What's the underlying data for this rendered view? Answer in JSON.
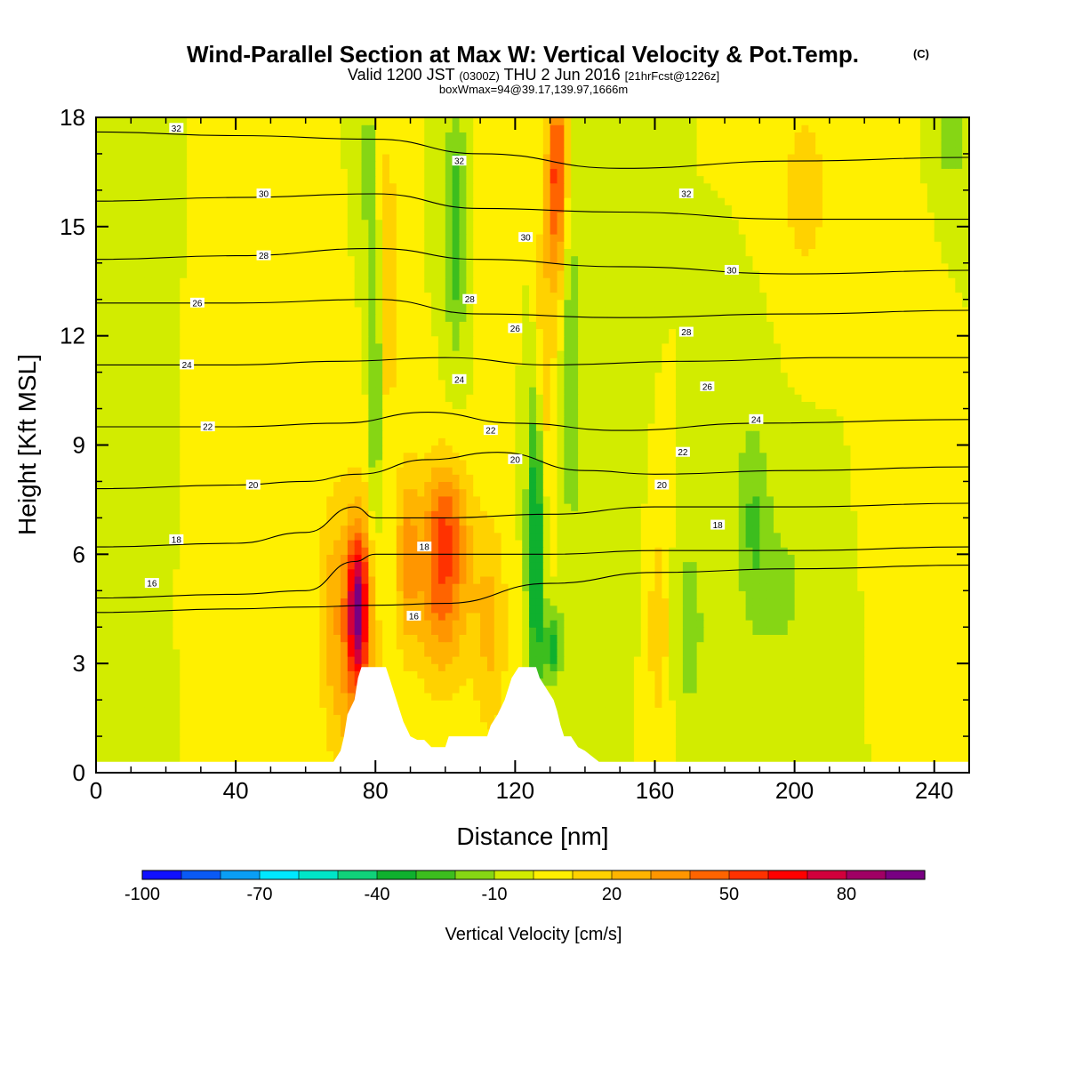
{
  "title": {
    "main": "Wind-Parallel Section at Max W: Vertical Velocity & Pot.Temp.",
    "copyright": "(C)",
    "valid_prefix": "Valid 1200 JST",
    "utc": "(0300Z)",
    "valid_date": "THU 2 Jun 2016",
    "forecast": "[21hrFcst@1226z]",
    "box_info": "boxWmax=94@39.17,139.97,1666m"
  },
  "chart_data": {
    "type": "heatmap",
    "xlabel": "Distance [nm]",
    "ylabel": "Height [Kft MSL]",
    "xlim": [
      0,
      250
    ],
    "ylim": [
      0,
      18
    ],
    "x_ticks": [
      0,
      40,
      80,
      120,
      160,
      200,
      240
    ],
    "x_tick_labels": [
      "0",
      "40",
      "80",
      "120",
      "160",
      "200",
      "240"
    ],
    "y_ticks": [
      0,
      3,
      6,
      9,
      12,
      15,
      18
    ],
    "y_tick_labels": [
      "0",
      "3",
      "6",
      "9",
      "12",
      "15",
      "18"
    ],
    "colorbar": {
      "label": "Vertical Velocity [cm/s]",
      "levels": [
        -100,
        -90,
        -80,
        -70,
        -60,
        -50,
        -40,
        -30,
        -20,
        -10,
        0,
        10,
        20,
        30,
        40,
        50,
        60,
        70,
        80,
        90,
        100
      ],
      "tick_values": [
        -100,
        -70,
        -40,
        -10,
        20,
        50,
        80
      ],
      "tick_labels": [
        "-100",
        "-70",
        "-40",
        "-10",
        "20",
        "50",
        "80"
      ],
      "colors": [
        "#1010ff",
        "#0a5af5",
        "#0a9ef5",
        "#00e8ff",
        "#00e6c8",
        "#10d27a",
        "#0fb02e",
        "#3cbe1e",
        "#86d614",
        "#d2ec00",
        "#fff000",
        "#ffd200",
        "#ffb400",
        "#ff9600",
        "#ff6400",
        "#ff3200",
        "#ff0000",
        "#d2003c",
        "#a00064",
        "#780082"
      ]
    },
    "terrain_kft": [
      [
        0,
        0.3
      ],
      [
        68,
        0.3
      ],
      [
        70,
        0.6
      ],
      [
        71,
        1.0
      ],
      [
        72,
        1.6
      ],
      [
        74,
        2.0
      ],
      [
        75,
        2.6
      ],
      [
        76,
        2.9
      ],
      [
        79,
        2.9
      ],
      [
        80,
        2.9
      ],
      [
        83,
        2.9
      ],
      [
        84,
        2.6
      ],
      [
        85,
        2.3
      ],
      [
        86,
        2.0
      ],
      [
        87,
        1.7
      ],
      [
        88,
        1.4
      ],
      [
        89,
        1.2
      ],
      [
        90,
        1.0
      ],
      [
        92,
        0.9
      ],
      [
        94,
        0.9
      ],
      [
        96,
        0.7
      ],
      [
        100,
        0.7
      ],
      [
        101,
        1.0
      ],
      [
        112,
        1.0
      ],
      [
        113,
        1.3
      ],
      [
        115,
        1.6
      ],
      [
        117,
        2.0
      ],
      [
        119,
        2.6
      ],
      [
        121,
        2.9
      ],
      [
        126,
        2.9
      ],
      [
        127,
        2.6
      ],
      [
        129,
        2.3
      ],
      [
        131,
        2.0
      ],
      [
        132,
        1.7
      ],
      [
        133,
        1.3
      ],
      [
        134,
        1.0
      ],
      [
        136,
        1.0
      ],
      [
        138,
        0.7
      ],
      [
        140,
        0.6
      ],
      [
        144,
        0.3
      ],
      [
        250,
        0.3
      ]
    ],
    "features": [
      {
        "x": 75,
        "y": 4.5,
        "sx": 3.0,
        "sy": 2.0,
        "w": 70
      },
      {
        "x": 74,
        "y": 3.5,
        "sx": 7.0,
        "sy": 4.5,
        "w": 30
      },
      {
        "x": 99,
        "y": 5.5,
        "sx": 8.0,
        "sy": 2.8,
        "w": 48
      },
      {
        "x": 101,
        "y": 7.0,
        "sx": 5.0,
        "sy": 1.5,
        "w": 15
      },
      {
        "x": 89,
        "y": 6.0,
        "sx": 3.0,
        "sy": 2.5,
        "w": 26
      },
      {
        "x": 113,
        "y": 4.0,
        "sx": 5.0,
        "sy": 3.0,
        "w": 22
      },
      {
        "x": 67,
        "y": 4.5,
        "sx": 4.0,
        "sy": 3.0,
        "w": 15
      },
      {
        "x": 132,
        "y": 16.5,
        "sx": 2.8,
        "sy": 3.0,
        "w": 55
      },
      {
        "x": 128,
        "y": 11.0,
        "sx": 3.0,
        "sy": 4.5,
        "w": 22
      },
      {
        "x": 83,
        "y": 13.5,
        "sx": 3.5,
        "sy": 4.5,
        "w": 20
      },
      {
        "x": 80,
        "y": 11.0,
        "sx": 2.0,
        "sy": 4.5,
        "w": -30
      },
      {
        "x": 78,
        "y": 16.5,
        "sx": 2.5,
        "sy": 2.5,
        "w": -15
      },
      {
        "x": 103,
        "y": 15.0,
        "sx": 3.0,
        "sy": 3.5,
        "w": -28
      },
      {
        "x": 126,
        "y": 6.5,
        "sx": 2.5,
        "sy": 4.5,
        "w": -50
      },
      {
        "x": 131,
        "y": 3.5,
        "sx": 2.5,
        "sy": 1.0,
        "w": -35
      },
      {
        "x": 136,
        "y": 11.0,
        "sx": 2.5,
        "sy": 5.0,
        "w": -20
      },
      {
        "x": 148,
        "y": 9.0,
        "sx": 6.0,
        "sy": 4.0,
        "w": -10
      },
      {
        "x": 161,
        "y": 4.0,
        "sx": 3.0,
        "sy": 3.0,
        "w": 18
      },
      {
        "x": 170,
        "y": 4.0,
        "sx": 4.0,
        "sy": 2.5,
        "w": -18
      },
      {
        "x": 188,
        "y": 7.0,
        "sx": 5.0,
        "sy": 3.0,
        "w": -20
      },
      {
        "x": 197,
        "y": 5.0,
        "sx": 8.0,
        "sy": 2.5,
        "w": -12
      },
      {
        "x": 203,
        "y": 16.0,
        "sx": 7.0,
        "sy": 2.5,
        "w": 16
      },
      {
        "x": 245,
        "y": 17.5,
        "sx": 6.0,
        "sy": 1.5,
        "w": -15
      },
      {
        "x": 10,
        "y": 13.0,
        "sx": 4.0,
        "sy": 4.0,
        "w": -8
      },
      {
        "x": 38,
        "y": 4.0,
        "sx": 4.0,
        "sy": 5.0,
        "w": 10
      },
      {
        "x": 5,
        "y": 1.5,
        "sx": 5.0,
        "sy": 2.0,
        "w": -8
      },
      {
        "x": 230,
        "y": 13.0,
        "sx": 6.0,
        "sy": 4.0,
        "w": 9
      },
      {
        "x": 115,
        "y": 15.0,
        "sx": 4.0,
        "sy": 3.0,
        "w": 10
      }
    ],
    "theta_contours": [
      {
        "label": "16",
        "pts": [
          [
            0,
            4.4
          ],
          [
            40,
            4.5
          ],
          [
            60,
            4.55
          ],
          [
            80,
            4.6
          ],
          [
            100,
            4.65
          ],
          [
            130,
            5.2
          ],
          [
            160,
            5.5
          ],
          [
            200,
            5.6
          ],
          [
            250,
            5.7
          ]
        ]
      },
      {
        "label": "16",
        "pts": [
          [
            0,
            4.8
          ],
          [
            40,
            4.9
          ],
          [
            60,
            5.0
          ],
          [
            74,
            5.8
          ],
          [
            80,
            6.0
          ],
          [
            100,
            6.0
          ],
          [
            130,
            6.0
          ],
          [
            160,
            6.1
          ],
          [
            200,
            6.1
          ],
          [
            250,
            6.2
          ]
        ]
      },
      {
        "label": "18",
        "pts": [
          [
            0,
            6.2
          ],
          [
            40,
            6.3
          ],
          [
            60,
            6.6
          ],
          [
            74,
            7.3
          ],
          [
            80,
            7.0
          ],
          [
            100,
            7.0
          ],
          [
            130,
            7.1
          ],
          [
            160,
            7.3
          ],
          [
            200,
            7.3
          ],
          [
            250,
            7.4
          ]
        ]
      },
      {
        "label": "20",
        "pts": [
          [
            0,
            7.8
          ],
          [
            40,
            7.9
          ],
          [
            60,
            8.0
          ],
          [
            75,
            8.2
          ],
          [
            95,
            8.6
          ],
          [
            115,
            8.8
          ],
          [
            140,
            8.3
          ],
          [
            160,
            8.2
          ],
          [
            200,
            8.3
          ],
          [
            250,
            8.4
          ]
        ]
      },
      {
        "label": "22",
        "pts": [
          [
            0,
            9.5
          ],
          [
            40,
            9.5
          ],
          [
            70,
            9.6
          ],
          [
            95,
            9.9
          ],
          [
            120,
            9.6
          ],
          [
            150,
            9.4
          ],
          [
            190,
            9.6
          ],
          [
            250,
            9.7
          ]
        ]
      },
      {
        "label": "24",
        "pts": [
          [
            0,
            11.2
          ],
          [
            40,
            11.2
          ],
          [
            70,
            11.3
          ],
          [
            100,
            11.4
          ],
          [
            130,
            11.2
          ],
          [
            170,
            11.3
          ],
          [
            210,
            11.4
          ],
          [
            250,
            11.4
          ]
        ]
      },
      {
        "label": "26",
        "pts": [
          [
            0,
            12.9
          ],
          [
            40,
            12.9
          ],
          [
            80,
            13.0
          ],
          [
            110,
            12.6
          ],
          [
            150,
            12.5
          ],
          [
            200,
            12.6
          ],
          [
            250,
            12.7
          ]
        ]
      },
      {
        "label": "28",
        "pts": [
          [
            0,
            14.1
          ],
          [
            40,
            14.2
          ],
          [
            80,
            14.4
          ],
          [
            110,
            14.1
          ],
          [
            150,
            13.9
          ],
          [
            200,
            13.7
          ],
          [
            250,
            13.8
          ]
        ]
      },
      {
        "label": "30",
        "pts": [
          [
            0,
            15.7
          ],
          [
            40,
            15.8
          ],
          [
            80,
            15.9
          ],
          [
            110,
            15.5
          ],
          [
            150,
            15.4
          ],
          [
            200,
            15.2
          ],
          [
            250,
            15.2
          ]
        ]
      },
      {
        "label": "32",
        "pts": [
          [
            0,
            17.6
          ],
          [
            40,
            17.5
          ],
          [
            80,
            17.4
          ],
          [
            110,
            17.0
          ],
          [
            150,
            16.6
          ],
          [
            200,
            16.8
          ],
          [
            250,
            16.9
          ]
        ]
      }
    ],
    "contour_label_positions": [
      {
        "text": "32",
        "x": 23,
        "y": 17.7
      },
      {
        "text": "32",
        "x": 104,
        "y": 16.8
      },
      {
        "text": "32",
        "x": 169,
        "y": 15.9
      },
      {
        "text": "30",
        "x": 48,
        "y": 15.9
      },
      {
        "text": "30",
        "x": 123,
        "y": 14.7
      },
      {
        "text": "30",
        "x": 182,
        "y": 13.8
      },
      {
        "text": "28",
        "x": 48,
        "y": 14.2
      },
      {
        "text": "28",
        "x": 107,
        "y": 13.0
      },
      {
        "text": "28",
        "x": 169,
        "y": 12.1
      },
      {
        "text": "26",
        "x": 29,
        "y": 12.9
      },
      {
        "text": "26",
        "x": 120,
        "y": 12.2
      },
      {
        "text": "26",
        "x": 175,
        "y": 10.6
      },
      {
        "text": "24",
        "x": 26,
        "y": 11.2
      },
      {
        "text": "24",
        "x": 104,
        "y": 10.8
      },
      {
        "text": "24",
        "x": 189,
        "y": 9.7
      },
      {
        "text": "22",
        "x": 32,
        "y": 9.5
      },
      {
        "text": "22",
        "x": 113,
        "y": 9.4
      },
      {
        "text": "22",
        "x": 168,
        "y": 8.8
      },
      {
        "text": "20",
        "x": 45,
        "y": 7.9
      },
      {
        "text": "20",
        "x": 120,
        "y": 8.6
      },
      {
        "text": "20",
        "x": 162,
        "y": 7.9
      },
      {
        "text": "18",
        "x": 23,
        "y": 6.4
      },
      {
        "text": "18",
        "x": 94,
        "y": 6.2
      },
      {
        "text": "18",
        "x": 178,
        "y": 6.8
      },
      {
        "text": "16",
        "x": 16,
        "y": 5.2
      },
      {
        "text": "16",
        "x": 91,
        "y": 4.3
      }
    ]
  }
}
